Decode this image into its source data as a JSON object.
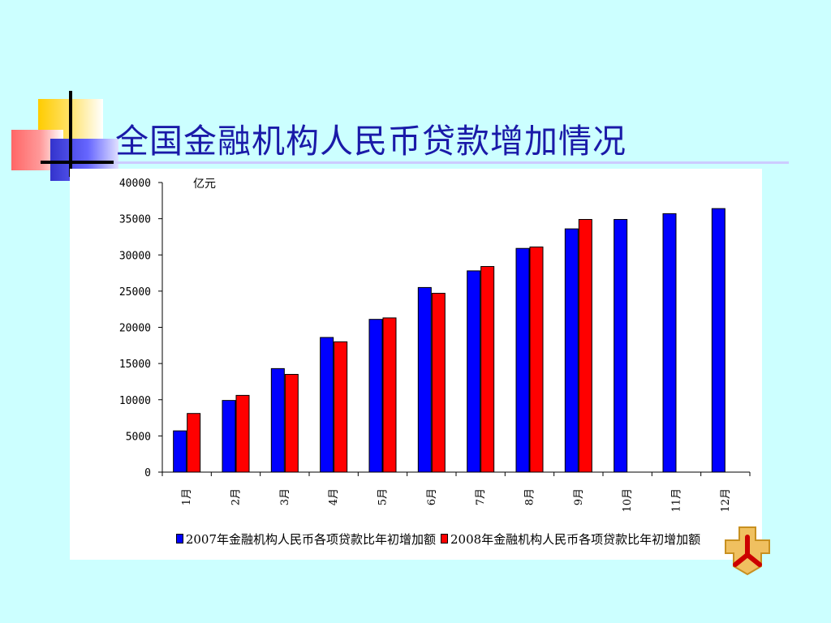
{
  "page": {
    "title": "全国金融机构人民币贷款增加情况"
  },
  "colors": {
    "background": "#ccffff",
    "title": "#1a1aa8",
    "series_2007": "#0000ff",
    "series_2008": "#ff0000"
  },
  "chart_data": {
    "type": "bar",
    "title": "",
    "unit_label": "亿元",
    "categories": [
      "1月",
      "2月",
      "3月",
      "4月",
      "5月",
      "6月",
      "7月",
      "8月",
      "9月",
      "10月",
      "11月",
      "12月"
    ],
    "series": [
      {
        "name": "2007年金融机构人民币各项贷款比年初增加额",
        "color": "#0000ff",
        "values": [
          5700,
          9900,
          14300,
          18600,
          21100,
          25500,
          27800,
          30900,
          33600,
          34900,
          35700,
          36400
        ]
      },
      {
        "name": "2008年金融机构人民币各项贷款比年初增加额",
        "color": "#ff0000",
        "values": [
          8100,
          10600,
          13500,
          18000,
          21300,
          24700,
          28400,
          31100,
          34900,
          null,
          null,
          null
        ]
      }
    ],
    "ylim": [
      0,
      40000
    ],
    "yticks": [
      0,
      5000,
      10000,
      15000,
      20000,
      25000,
      30000,
      35000,
      40000
    ],
    "grid": false,
    "legend_position": "bottom"
  },
  "icons": {
    "logo": "pboc-logo-icon"
  }
}
